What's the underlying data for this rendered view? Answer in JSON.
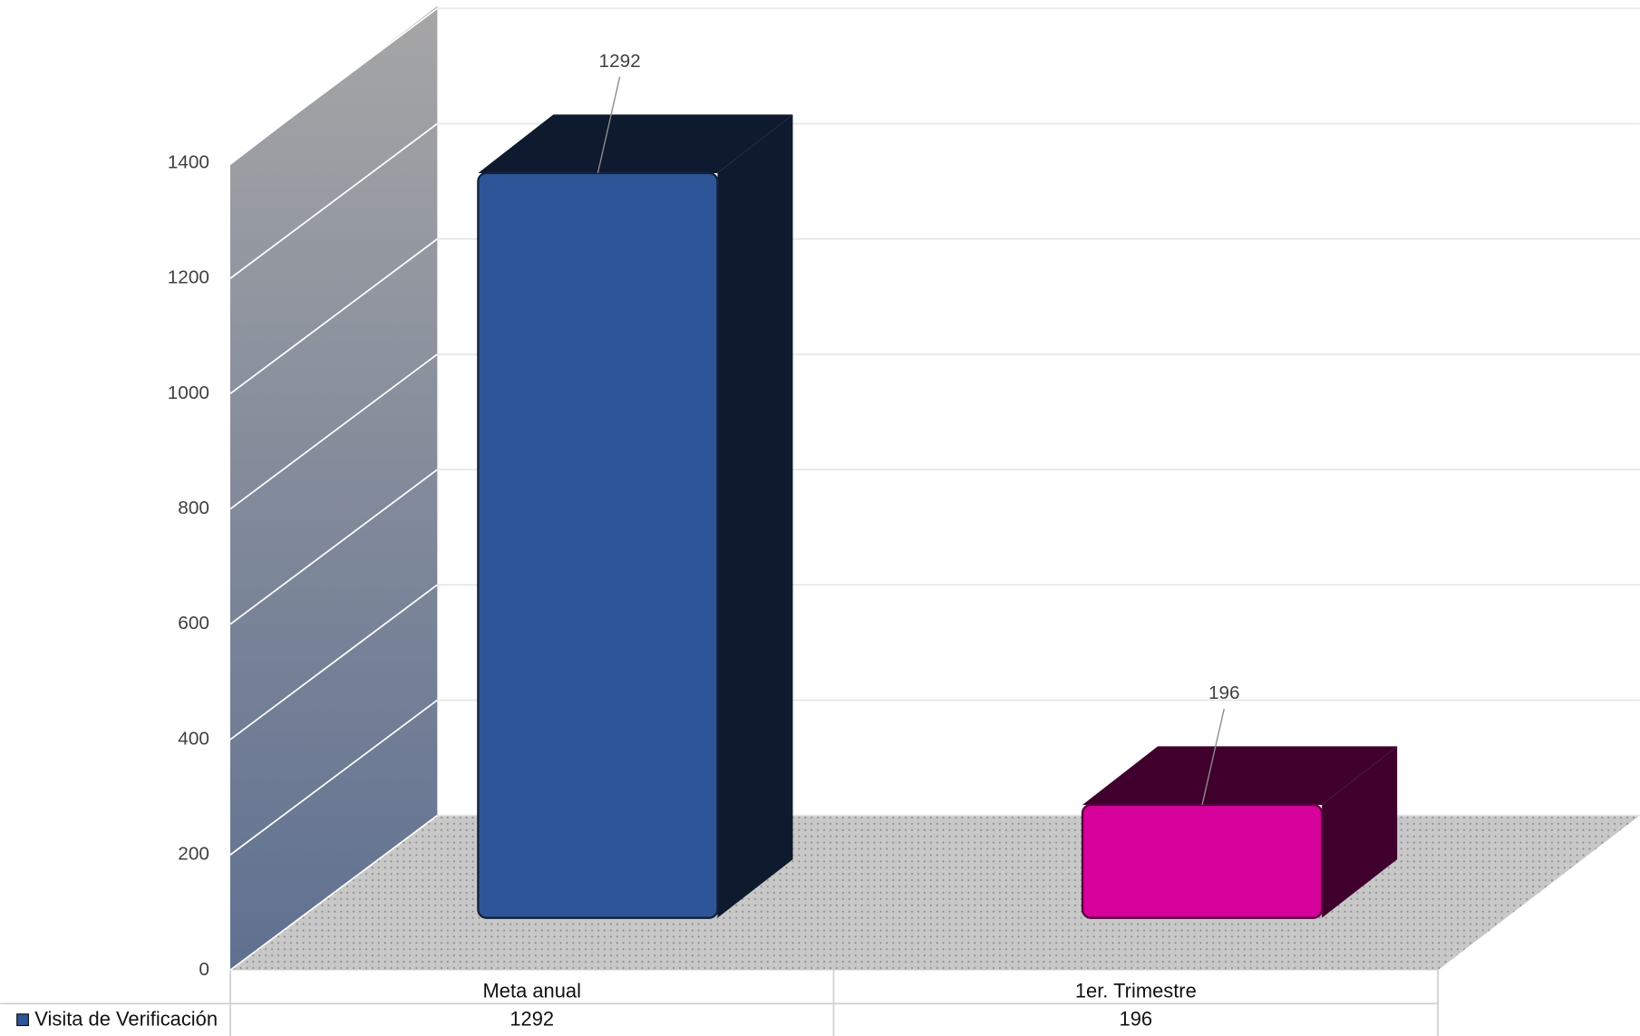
{
  "chart_data": {
    "type": "bar3d",
    "categories": [
      "Meta anual",
      "1er. Trimestre"
    ],
    "series": [
      {
        "name": "Visita de Verificación",
        "color": "#2e5597",
        "point_colors": [
          "#2e5597",
          "#d6009a"
        ],
        "values": [
          1292,
          196
        ]
      }
    ],
    "ylim": [
      0,
      1400
    ],
    "yticks": [
      0,
      200,
      400,
      600,
      800,
      1000,
      1200,
      1400
    ],
    "grid": true,
    "data_table": true
  }
}
